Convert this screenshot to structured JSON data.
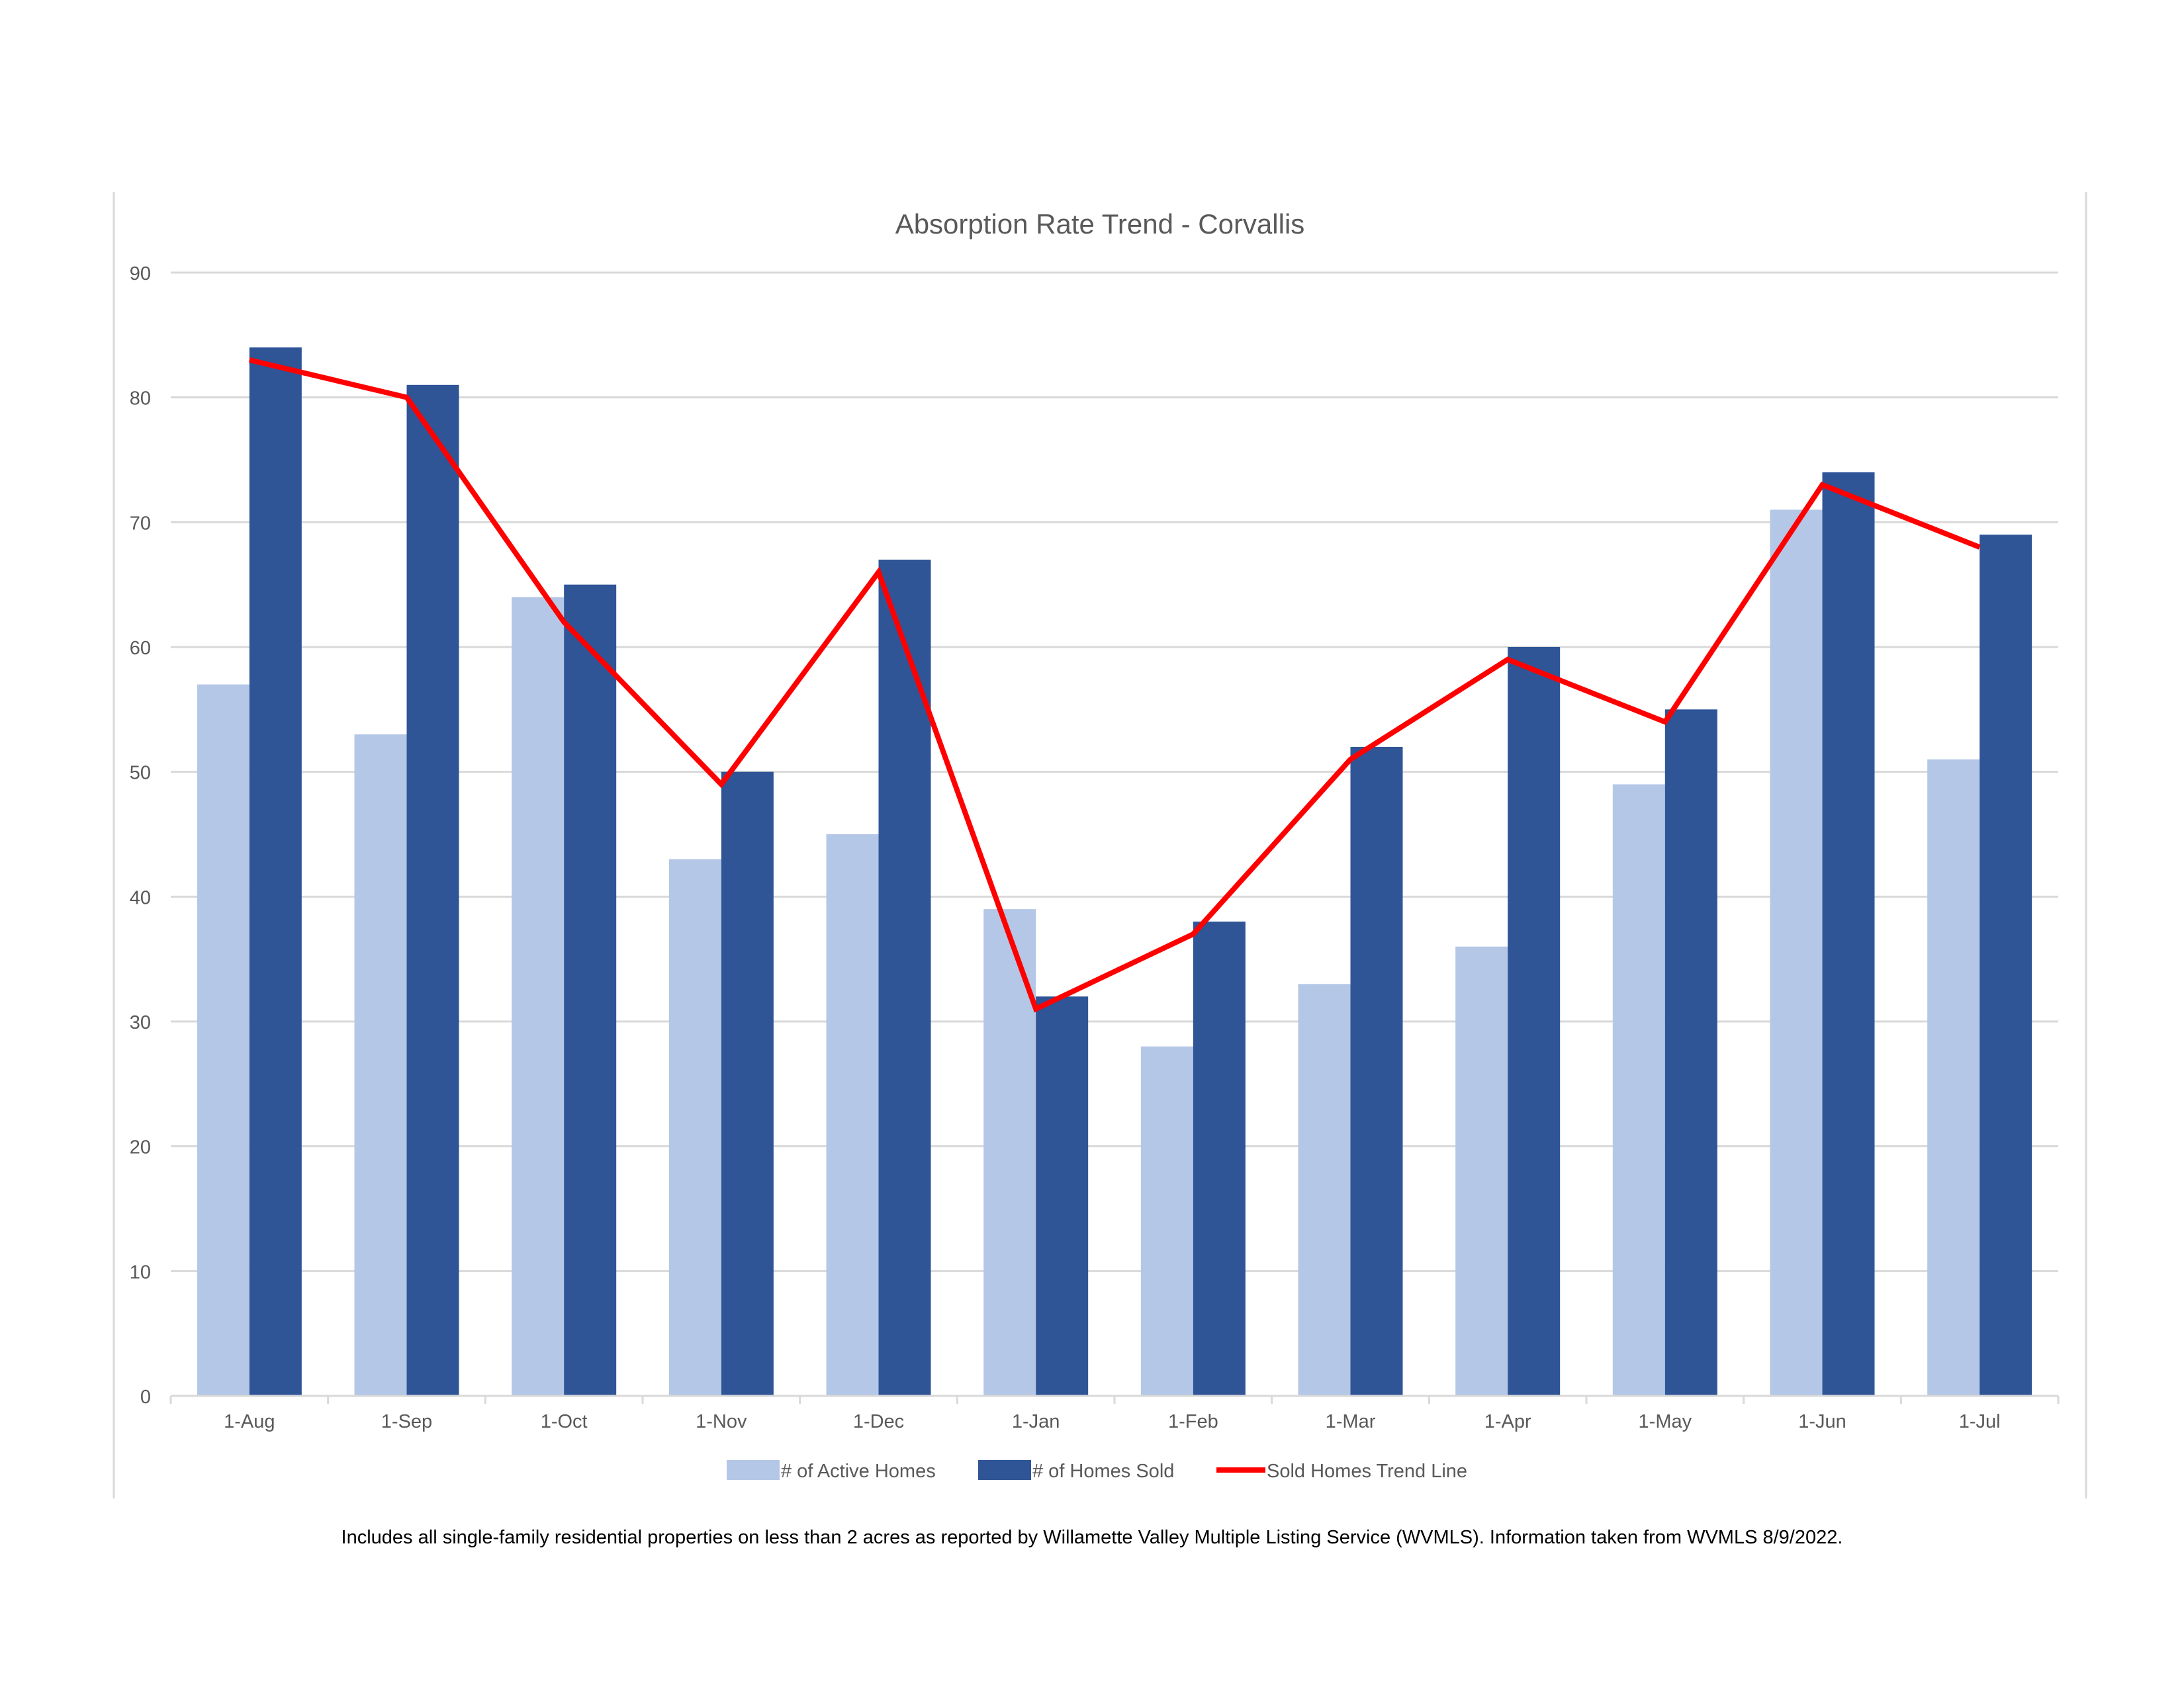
{
  "chart_data": {
    "type": "bar",
    "title": "Absorption Rate Trend - Corvallis",
    "xlabel": "",
    "ylabel": "",
    "ylim": [
      0,
      90
    ],
    "yticks": [
      0,
      10,
      20,
      30,
      40,
      50,
      60,
      70,
      80,
      90
    ],
    "grid": true,
    "legend_position": "bottom",
    "categories": [
      "1-Aug",
      "1-Sep",
      "1-Oct",
      "1-Nov",
      "1-Dec",
      "1-Jan",
      "1-Feb",
      "1-Mar",
      "1-Apr",
      "1-May",
      "1-Jun",
      "1-Jul"
    ],
    "series": [
      {
        "name": "# of Active Homes",
        "type": "bar",
        "color": "#B4C7E7",
        "values": [
          57,
          53,
          64,
          43,
          45,
          39,
          28,
          33,
          36,
          49,
          71,
          51
        ]
      },
      {
        "name": "# of Homes Sold",
        "type": "bar",
        "color": "#2F5597",
        "values": [
          84,
          81,
          65,
          50,
          67,
          32,
          38,
          52,
          60,
          55,
          74,
          69
        ]
      },
      {
        "name": "Sold Homes Trend Line",
        "type": "line",
        "color": "#FF0000",
        "values": [
          83,
          80,
          62,
          49,
          66,
          31,
          37,
          51,
          59,
          54,
          73,
          68
        ]
      }
    ]
  },
  "footnote": "Includes all single-family residential properties on less than 2 acres as reported by Willamette Valley Multiple Listing Service (WVMLS). Information taken from WVMLS 8/9/2022."
}
